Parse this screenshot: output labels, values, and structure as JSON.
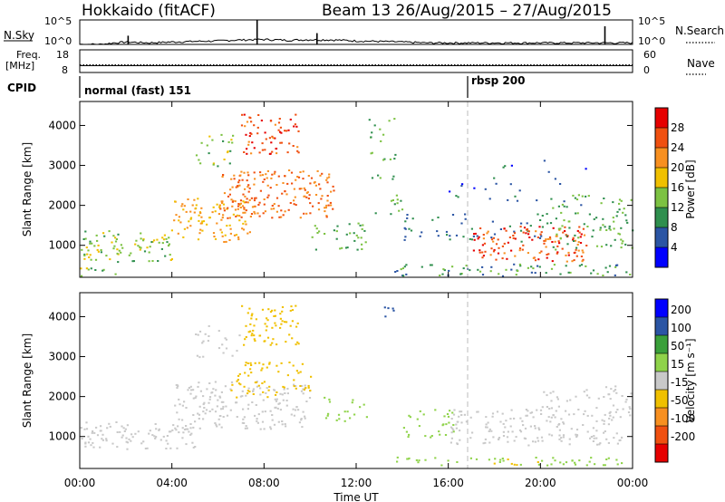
{
  "header": {
    "station": "Hokkaido (fitACF)",
    "beam_info": "Beam 13 26/Aug/2015 – 27/Aug/2015"
  },
  "status_panels": {
    "nsky_label": "N.Sky",
    "nsearch_label": "N.Search",
    "nsky_left_ticks": [
      "10^5",
      "10^0"
    ],
    "nsky_right_ticks": [
      "10^5",
      "10^0"
    ],
    "freq_label": "Freq.",
    "freq_unit": "[MHz]",
    "freq_ticks": [
      "18",
      "8"
    ],
    "nave_label": "Nave",
    "nave_ticks": [
      "60",
      "0"
    ],
    "cpid_label": "CPID",
    "cpid_modes": [
      "normal (fast) 151",
      "rbsp 200"
    ]
  },
  "colors": {
    "power_scale": [
      "#0000ff",
      "#2b55a4",
      "#2f8f4e",
      "#7cc242",
      "#f0c000",
      "#f89020",
      "#f05010",
      "#e60000"
    ],
    "velocity_scale": [
      "#e60000",
      "#f05010",
      "#f89020",
      "#f0c000",
      "#c9c9c9",
      "#8fd34a",
      "#3aa03a",
      "#2b55a4",
      "#0000ff"
    ],
    "background": "#ffffff",
    "frame": "#000000"
  },
  "chart_data": [
    {
      "type": "line",
      "panel": "N.Sky / N.Search",
      "x_unit": "hours UT",
      "y_scale": "log",
      "ylim": [
        1,
        100000
      ],
      "x": [
        0,
        1,
        2,
        3,
        4,
        5,
        6,
        7,
        8,
        9,
        10,
        11,
        12,
        13,
        14,
        15,
        16,
        17,
        18,
        19,
        20,
        21,
        22,
        23,
        24
      ],
      "values": [
        1,
        1,
        3,
        2,
        3,
        4,
        5,
        8,
        10,
        7,
        9,
        8,
        5,
        4,
        3,
        2,
        2,
        2,
        2,
        2,
        2,
        2,
        2,
        2,
        2
      ],
      "spikes": [
        {
          "x": 2.1,
          "y": 60
        },
        {
          "x": 7.7,
          "y": 100000
        },
        {
          "x": 10.3,
          "y": 200
        },
        {
          "x": 22.8,
          "y": 5000
        }
      ]
    },
    {
      "type": "line",
      "panel": "Freq. / Nave",
      "x_unit": "hours UT",
      "ylim": [
        8,
        18
      ],
      "series": [
        {
          "values": [
            11,
            11
          ]
        },
        {
          "values": [
            10.5,
            10.5
          ]
        }
      ]
    },
    {
      "type": "heatmap",
      "panel": "Power",
      "title": "Hokkaido (fitACF)",
      "xlabel": "Time UT",
      "ylabel": "Slant Range [km]",
      "xticks": [
        "00:00",
        "04:00",
        "08:00",
        "12:00",
        "16:00",
        "20:00",
        "00:00"
      ],
      "x_hours": [
        0,
        4,
        8,
        12,
        16,
        20,
        24
      ],
      "yticks": [
        "1000",
        "2000",
        "3000",
        "4000"
      ],
      "ylim": [
        200,
        4600
      ],
      "colorbar_label": "Power [dB]",
      "colorbar_ticks": [
        "4",
        "8",
        "12",
        "16",
        "20",
        "24",
        "28"
      ],
      "scatter_regions": [
        {
          "t": [
            0.0,
            4.0
          ],
          "r": [
            600,
            1400
          ],
          "v": 14,
          "d": 0.6
        },
        {
          "t": [
            0.0,
            2.0
          ],
          "r": [
            250,
            500
          ],
          "v": 14,
          "d": 0.4
        },
        {
          "t": [
            4.0,
            7.5
          ],
          "r": [
            1100,
            2200
          ],
          "v": 20,
          "d": 0.55
        },
        {
          "t": [
            6.0,
            11.0
          ],
          "r": [
            1700,
            2900
          ],
          "v": 24,
          "d": 0.7
        },
        {
          "t": [
            7.0,
            9.5
          ],
          "r": [
            3300,
            4300
          ],
          "v": 26,
          "d": 0.6
        },
        {
          "t": [
            5.0,
            7.0
          ],
          "r": [
            3000,
            3800
          ],
          "v": 14,
          "d": 0.3
        },
        {
          "t": [
            10.0,
            12.5
          ],
          "r": [
            900,
            1600
          ],
          "v": 12,
          "d": 0.4
        },
        {
          "t": [
            12.5,
            14.0
          ],
          "r": [
            1800,
            4200
          ],
          "v": 12,
          "d": 0.2
        },
        {
          "t": [
            13.5,
            24.0
          ],
          "r": [
            250,
            550
          ],
          "v": 10,
          "d": 0.5
        },
        {
          "t": [
            14.0,
            20.0
          ],
          "r": [
            1100,
            1800
          ],
          "v": 8,
          "d": 0.25
        },
        {
          "t": [
            17.0,
            22.0
          ],
          "r": [
            600,
            1500
          ],
          "v": 26,
          "d": 0.65
        },
        {
          "t": [
            20.0,
            24.0
          ],
          "r": [
            900,
            2300
          ],
          "v": 12,
          "d": 0.35
        },
        {
          "t": [
            16.0,
            22.0
          ],
          "r": [
            2000,
            3200
          ],
          "v": 6,
          "d": 0.08
        }
      ]
    },
    {
      "type": "heatmap",
      "panel": "Velocity",
      "xlabel": "Time UT",
      "ylabel": "Slant Range [km]",
      "xticks": [
        "00:00",
        "04:00",
        "08:00",
        "12:00",
        "16:00",
        "20:00",
        "00:00"
      ],
      "x_hours": [
        0,
        4,
        8,
        12,
        16,
        20,
        24
      ],
      "yticks": [
        "1000",
        "2000",
        "3000",
        "4000"
      ],
      "ylim": [
        200,
        4600
      ],
      "colorbar_label": "Velocity [m s⁻¹]",
      "colorbar_ticks": [
        "200",
        "100",
        "50",
        "15",
        "-15",
        "-50",
        "-100",
        "-200"
      ],
      "scatter_regions": [
        {
          "t": [
            0.0,
            5.0
          ],
          "r": [
            700,
            1400
          ],
          "v": 0,
          "d": 0.6
        },
        {
          "t": [
            4.0,
            10.0
          ],
          "r": [
            1200,
            2400
          ],
          "v": 0,
          "d": 0.55
        },
        {
          "t": [
            6.5,
            10.0
          ],
          "r": [
            2000,
            2900
          ],
          "v": -40,
          "d": 0.45
        },
        {
          "t": [
            7.0,
            9.5
          ],
          "r": [
            3300,
            4300
          ],
          "v": -40,
          "d": 0.6
        },
        {
          "t": [
            5.0,
            7.0
          ],
          "r": [
            3000,
            3800
          ],
          "v": 0,
          "d": 0.3
        },
        {
          "t": [
            10.5,
            12.5
          ],
          "r": [
            1400,
            2000
          ],
          "v": 30,
          "d": 0.35
        },
        {
          "t": [
            13.0,
            13.6
          ],
          "r": [
            4000,
            4300
          ],
          "v": 180,
          "d": 0.6
        },
        {
          "t": [
            14.0,
            16.5
          ],
          "r": [
            1000,
            1700
          ],
          "v": 30,
          "d": 0.35
        },
        {
          "t": [
            13.5,
            24.0
          ],
          "r": [
            300,
            500
          ],
          "v": 30,
          "d": 0.5
        },
        {
          "t": [
            16.0,
            23.5
          ],
          "r": [
            800,
            1700
          ],
          "v": 0,
          "d": 0.55
        },
        {
          "t": [
            20.0,
            24.0
          ],
          "r": [
            1500,
            2300
          ],
          "v": 0,
          "d": 0.3
        },
        {
          "t": [
            17.5,
            20.0
          ],
          "r": [
            300,
            450
          ],
          "v": -40,
          "d": 0.35
        }
      ]
    }
  ]
}
